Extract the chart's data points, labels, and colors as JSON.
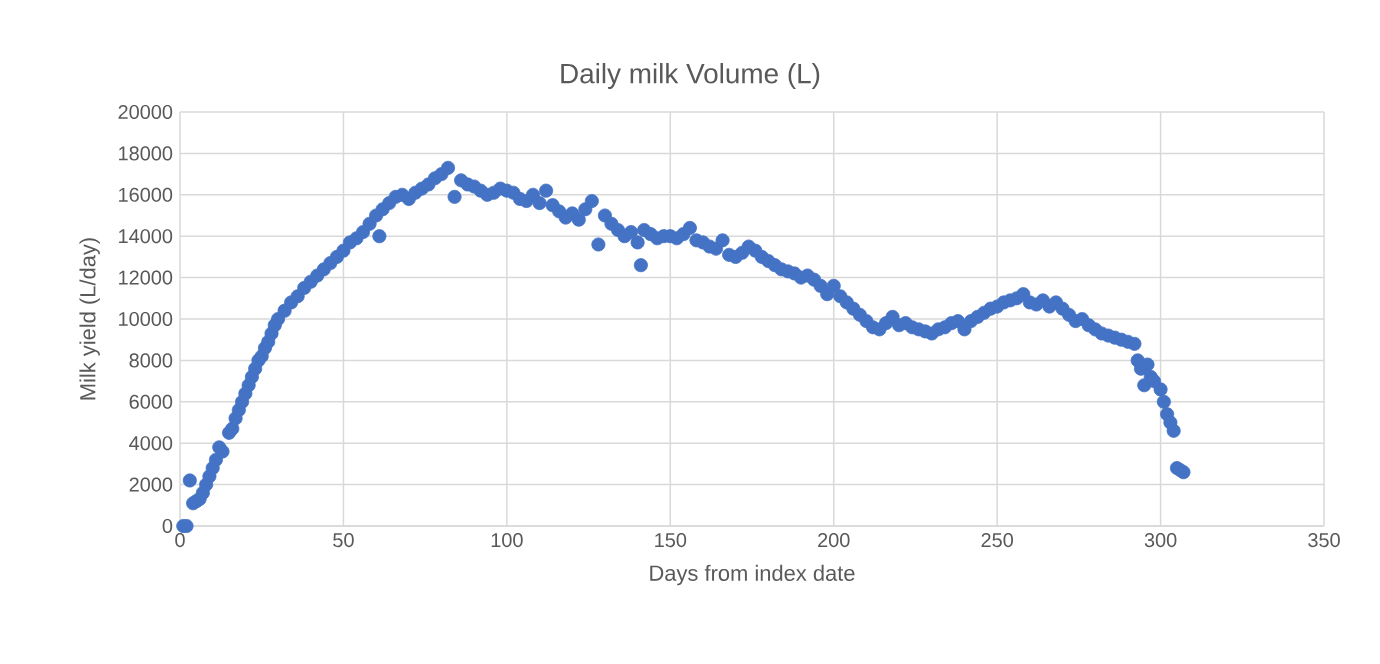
{
  "chart_data": {
    "type": "scatter",
    "title": "Daily milk Volume (L)",
    "xlabel": "Days from index date",
    "ylabel": "Milk yield (L/day)",
    "xlim": [
      0,
      350
    ],
    "xticks": [
      0,
      50,
      100,
      150,
      200,
      250,
      300,
      350
    ],
    "ylim": [
      0,
      20000
    ],
    "yticks": [
      0,
      2000,
      4000,
      6000,
      8000,
      10000,
      12000,
      14000,
      16000,
      18000,
      20000
    ],
    "grid": true,
    "marker": "circle",
    "x": [
      1,
      2,
      3,
      4,
      5,
      6,
      7,
      8,
      9,
      10,
      11,
      12,
      13,
      15,
      16,
      17,
      18,
      19,
      20,
      21,
      22,
      23,
      24,
      25,
      26,
      27,
      28,
      29,
      30,
      32,
      34,
      36,
      38,
      40,
      42,
      44,
      46,
      48,
      50,
      52,
      54,
      56,
      58,
      60,
      61,
      62,
      64,
      66,
      68,
      70,
      72,
      74,
      76,
      78,
      80,
      82,
      84,
      86,
      88,
      90,
      92,
      94,
      96,
      98,
      100,
      102,
      104,
      106,
      108,
      110,
      112,
      114,
      116,
      118,
      120,
      122,
      124,
      126,
      128,
      130,
      132,
      134,
      136,
      138,
      140,
      141,
      142,
      144,
      146,
      148,
      150,
      152,
      154,
      156,
      158,
      160,
      162,
      164,
      166,
      168,
      170,
      172,
      174,
      176,
      178,
      180,
      182,
      184,
      186,
      188,
      190,
      192,
      194,
      196,
      198,
      200,
      202,
      204,
      206,
      208,
      210,
      212,
      214,
      216,
      218,
      220,
      222,
      224,
      226,
      228,
      230,
      232,
      234,
      236,
      238,
      240,
      242,
      244,
      246,
      248,
      250,
      252,
      254,
      256,
      258,
      260,
      262,
      264,
      266,
      268,
      270,
      272,
      274,
      276,
      278,
      280,
      282,
      284,
      286,
      288,
      290,
      292,
      293,
      294,
      295,
      296,
      297,
      298,
      300,
      301,
      302,
      303,
      304,
      305,
      306,
      307
    ],
    "series": [
      {
        "color": "#4472c4",
        "values": [
          0,
          0,
          2200,
          1100,
          1200,
          1300,
          1600,
          2000,
          2400,
          2800,
          3200,
          3800,
          3600,
          4500,
          4700,
          5200,
          5600,
          6000,
          6400,
          6800,
          7200,
          7600,
          8000,
          8200,
          8600,
          8900,
          9300,
          9700,
          10000,
          10400,
          10800,
          11100,
          11500,
          11800,
          12100,
          12400,
          12700,
          13000,
          13300,
          13700,
          13900,
          14200,
          14600,
          15000,
          14000,
          15300,
          15600,
          15900,
          16000,
          15800,
          16100,
          16300,
          16500,
          16800,
          17000,
          17300,
          15900,
          16700,
          16500,
          16400,
          16200,
          16000,
          16100,
          16300,
          16200,
          16100,
          15800,
          15700,
          16000,
          15600,
          16200,
          15500,
          15200,
          14900,
          15100,
          14800,
          15300,
          15700,
          13600,
          15000,
          14600,
          14300,
          14000,
          14200,
          13700,
          12600,
          14300,
          14100,
          13900,
          14000,
          14000,
          13900,
          14100,
          14400,
          13800,
          13700,
          13500,
          13400,
          13800,
          13100,
          13000,
          13200,
          13500,
          13300,
          13000,
          12800,
          12600,
          12400,
          12300,
          12200,
          12000,
          12100,
          11900,
          11600,
          11200,
          11600,
          11100,
          10800,
          10500,
          10200,
          9900,
          9600,
          9500,
          9800,
          10100,
          9700,
          9800,
          9600,
          9500,
          9400,
          9300,
          9500,
          9600,
          9800,
          9900,
          9500,
          9900,
          10100,
          10300,
          10500,
          10600,
          10800,
          10900,
          11000,
          11200,
          10800,
          10700,
          10900,
          10600,
          10800,
          10500,
          10200,
          9900,
          10000,
          9700,
          9500,
          9300,
          9200,
          9100,
          9000,
          8900,
          8800,
          8000,
          7600,
          6800,
          7800,
          7200,
          7000,
          6600,
          6000,
          5400,
          5000,
          4600,
          2800,
          2700,
          2600
        ]
      }
    ]
  }
}
